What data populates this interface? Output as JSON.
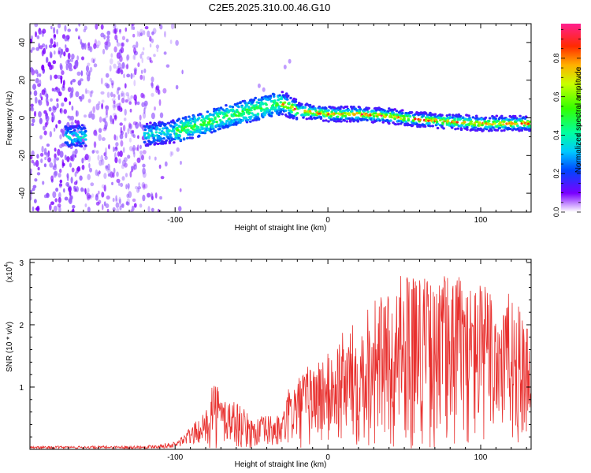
{
  "title": "C2E5.2025.310.00.46.G10",
  "chart_data": [
    {
      "type": "heatmap",
      "name": "spectrogram",
      "xlabel": "Height of straight line (km)",
      "ylabel": "Frequency (Hz)",
      "xlim": [
        -195,
        133
      ],
      "ylim": [
        -50,
        50
      ],
      "xticks": [
        -100,
        0,
        100
      ],
      "xtick_labels": [
        "-100",
        "0",
        "100"
      ],
      "yticks": [
        -40,
        -20,
        0,
        20,
        40
      ],
      "ytick_labels": [
        "-40",
        "-20",
        "0",
        "20",
        "40"
      ],
      "ridge": {
        "x": [
          -195,
          -165,
          -150,
          -120,
          -110,
          -100,
          -90,
          -80,
          -70,
          -60,
          -50,
          -40,
          -30,
          -20,
          -10,
          0,
          20,
          40,
          60,
          80,
          100,
          120,
          133
        ],
        "freq": [
          -10,
          -10,
          -9,
          -9,
          -8,
          -7,
          -5,
          -3,
          0,
          2,
          4,
          6,
          8,
          4,
          3,
          2,
          2,
          1,
          -1,
          -2,
          -3,
          -3,
          -3
        ]
      },
      "noise_region_x": [
        -195,
        -95
      ],
      "colorbar": {
        "label": "Normalized spectral amplitude",
        "ticks": [
          0.0,
          0.2,
          0.4,
          0.6,
          0.8
        ],
        "tick_labels": [
          "0.0",
          "0.2",
          "0.4",
          "0.6",
          "0.8"
        ],
        "range": [
          0,
          0.98
        ]
      }
    },
    {
      "type": "line",
      "name": "snr",
      "xlabel": "Height of straight line (km)",
      "ylabel": "SNR (10 * v/v)",
      "scale_label": "(x10",
      "scale_exponent": "4",
      "scale_close": ")",
      "xlim": [
        -195,
        133
      ],
      "ylim": [
        0,
        3.05
      ],
      "xticks": [
        -100,
        0,
        100
      ],
      "xtick_labels": [
        "-100",
        "0",
        "100"
      ],
      "yticks": [
        1,
        2,
        3
      ],
      "ytick_labels": [
        "1",
        "2",
        "3"
      ],
      "color": "#e8302e",
      "envelope": {
        "x": [
          -195,
          -120,
          -100,
          -80,
          -75,
          -70,
          -60,
          -50,
          -40,
          -30,
          -25,
          -20,
          -10,
          0,
          10,
          20,
          30,
          40,
          50,
          60,
          70,
          80,
          90,
          100,
          110,
          120,
          133
        ],
        "max": [
          0.05,
          0.06,
          0.12,
          0.6,
          1.25,
          0.9,
          0.8,
          0.5,
          0.55,
          0.55,
          1.05,
          1.15,
          1.45,
          1.55,
          1.9,
          2.1,
          2.55,
          2.45,
          2.9,
          2.95,
          2.6,
          3.0,
          2.7,
          2.7,
          2.6,
          2.5,
          2.0
        ]
      }
    }
  ]
}
